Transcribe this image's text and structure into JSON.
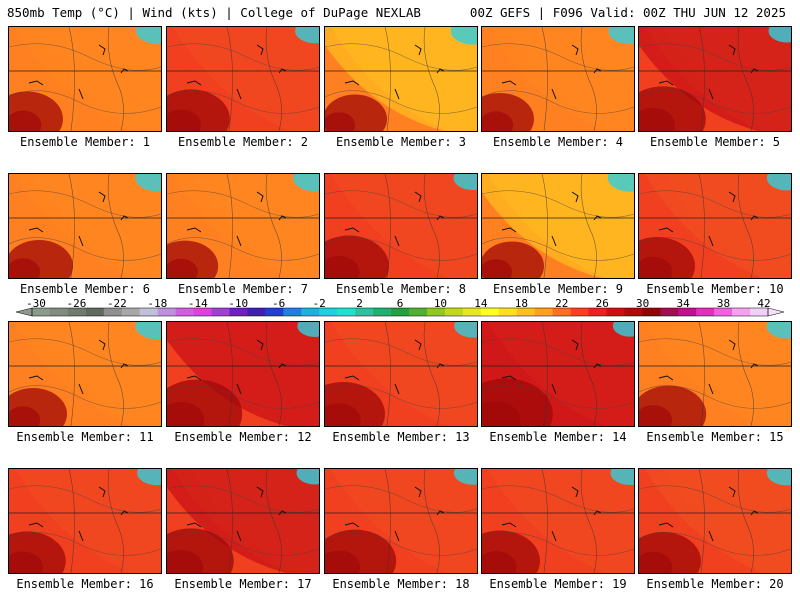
{
  "header": {
    "left": "850mb Temp (°C) | Wind (kts) | College of DuPage NEXLAB",
    "right": "00Z GEFS | F096 Valid: 00Z THU JUN 12 2025"
  },
  "colorbar": {
    "tick_labels": [
      "-30",
      "-26",
      "-22",
      "-18",
      "-14",
      "-10",
      "-6",
      "-2",
      "2",
      "6",
      "10",
      "14",
      "18",
      "22",
      "26",
      "30",
      "34",
      "38",
      "42"
    ],
    "colors": [
      "#8c9a8c",
      "#7f8c7f",
      "#6f7c6f",
      "#5f6b5f",
      "#909090",
      "#a8a8a8",
      "#c0c0d8",
      "#c090e0",
      "#d060e0",
      "#e040e0",
      "#a040d0",
      "#7020c0",
      "#4020b0",
      "#2040d0",
      "#2080e0",
      "#20b0e0",
      "#20d0e0",
      "#20e0d0",
      "#30c0a0",
      "#20b070",
      "#20a040",
      "#50b030",
      "#90c820",
      "#c0d820",
      "#e8e820",
      "#ffff20",
      "#ffe020",
      "#ffc020",
      "#ffa020",
      "#ff7020",
      "#ff4020",
      "#f02020",
      "#d01010",
      "#b00a0a",
      "#900505",
      "#a01050",
      "#c01090",
      "#e030c0",
      "#f060e0",
      "#f8a0f0",
      "#f0d0f8"
    ]
  },
  "members": [
    {
      "label": "Ensemble Member: 1",
      "warmth": 0.65
    },
    {
      "label": "Ensemble Member: 2",
      "warmth": 0.72
    },
    {
      "label": "Ensemble Member: 3",
      "warmth": 0.55
    },
    {
      "label": "Ensemble Member: 4",
      "warmth": 0.6
    },
    {
      "label": "Ensemble Member: 5",
      "warmth": 0.82
    },
    {
      "label": "Ensemble Member: 6",
      "warmth": 0.6
    },
    {
      "label": "Ensemble Member: 7",
      "warmth": 0.58
    },
    {
      "label": "Ensemble Member: 8",
      "warmth": 0.75
    },
    {
      "label": "Ensemble Member: 9",
      "warmth": 0.55
    },
    {
      "label": "Ensemble Member: 10",
      "warmth": 0.7
    },
    {
      "label": "Ensemble Member: 11",
      "warmth": 0.6
    },
    {
      "label": "Ensemble Member: 12",
      "warmth": 0.88
    },
    {
      "label": "Ensemble Member: 13",
      "warmth": 0.8
    },
    {
      "label": "Ensemble Member: 14",
      "warmth": 0.92
    },
    {
      "label": "Ensemble Member: 15",
      "warmth": 0.68
    },
    {
      "label": "Ensemble Member: 16",
      "warmth": 0.72
    },
    {
      "label": "Ensemble Member: 17",
      "warmth": 0.82
    },
    {
      "label": "Ensemble Member: 18",
      "warmth": 0.78
    },
    {
      "label": "Ensemble Member: 19",
      "warmth": 0.75
    },
    {
      "label": "Ensemble Member: 20",
      "warmth": 0.7
    }
  ]
}
